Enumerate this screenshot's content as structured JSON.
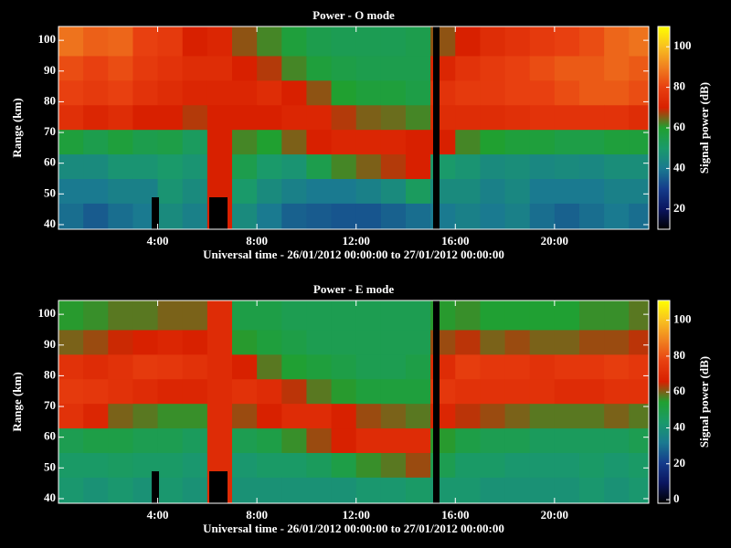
{
  "chart_data": [
    {
      "type": "heatmap",
      "title": "Power - O mode",
      "xlabel": "Universal time - 26/01/2012 00:00:00 to 27/01/2012 00:00:00",
      "ylabel": "Range (km)",
      "colorbar_label": "Signal power (dB)",
      "xlim": [
        0,
        23.8
      ],
      "ylim": [
        38.5,
        104.5
      ],
      "clim": [
        10,
        110
      ],
      "xticks": [
        {
          "value": 4,
          "label": "4:00"
        },
        {
          "value": 8,
          "label": "8:00"
        },
        {
          "value": 12,
          "label": "12:00"
        },
        {
          "value": 16,
          "label": "16:00"
        },
        {
          "value": 20,
          "label": "20:00"
        }
      ],
      "yticks": [
        40,
        50,
        60,
        70,
        80,
        90,
        100
      ],
      "cticks": [
        20,
        40,
        60,
        80,
        100
      ],
      "colormap": [
        "#000000",
        "#0a1560",
        "#153c8c",
        "#1a7a90",
        "#1a9a6a",
        "#20a030",
        "#d82000",
        "#e84010",
        "#f08020",
        "#f8c020",
        "#ffff00"
      ],
      "x_bins": [
        0,
        1,
        2,
        3,
        4,
        5,
        6,
        7,
        8,
        9,
        10,
        11,
        12,
        13,
        14,
        15,
        16,
        17,
        18,
        19,
        20,
        21,
        22,
        23,
        23.8
      ],
      "y_bins": [
        38.5,
        47,
        55,
        63,
        71,
        79,
        87,
        95,
        104.5
      ],
      "z": [
        [
          38,
          40,
          45,
          58,
          75,
          80,
          82,
          88
        ],
        [
          35,
          40,
          45,
          55,
          72,
          78,
          80,
          85
        ],
        [
          38,
          42,
          48,
          58,
          74,
          80,
          82,
          86
        ],
        [
          40,
          42,
          48,
          55,
          70,
          76,
          78,
          80
        ],
        [
          45,
          48,
          50,
          56,
          70,
          74,
          76,
          78
        ],
        [
          42,
          45,
          48,
          52,
          68,
          72,
          74,
          70
        ],
        [
          70,
          70,
          70,
          70,
          70,
          72,
          74,
          72
        ],
        [
          45,
          50,
          55,
          62,
          70,
          72,
          70,
          66
        ],
        [
          40,
          45,
          50,
          60,
          70,
          74,
          68,
          62
        ],
        [
          36,
          42,
          48,
          65,
          72,
          70,
          62,
          58
        ],
        [
          35,
          40,
          55,
          70,
          72,
          66,
          58,
          55
        ],
        [
          34,
          40,
          62,
          72,
          68,
          60,
          56,
          54
        ],
        [
          34,
          42,
          65,
          72,
          65,
          58,
          55,
          54
        ],
        [
          36,
          45,
          68,
          72,
          64,
          58,
          55,
          54
        ],
        [
          38,
          52,
          70,
          70,
          62,
          56,
          55,
          55
        ],
        [
          40,
          45,
          50,
          70,
          74,
          76,
          72,
          66
        ],
        [
          42,
          45,
          48,
          62,
          74,
          78,
          76,
          70
        ],
        [
          40,
          42,
          45,
          60,
          74,
          78,
          78,
          74
        ],
        [
          42,
          44,
          46,
          58,
          75,
          80,
          80,
          76
        ],
        [
          38,
          40,
          44,
          58,
          76,
          80,
          82,
          78
        ],
        [
          36,
          40,
          45,
          56,
          76,
          82,
          84,
          80
        ],
        [
          38,
          40,
          44,
          56,
          76,
          84,
          84,
          82
        ],
        [
          40,
          42,
          46,
          58,
          76,
          84,
          86,
          86
        ],
        [
          38,
          42,
          46,
          58,
          74,
          82,
          84,
          88
        ]
      ]
    },
    {
      "type": "heatmap",
      "title": "Power - E mode",
      "xlabel": "Universal time - 26/01/2012 00:00:00 to 27/01/2012 00:00:00",
      "ylabel": "Range (km)",
      "colorbar_label": "Signal power (dB)",
      "xlim": [
        0,
        23.8
      ],
      "ylim": [
        38.5,
        104.5
      ],
      "clim": [
        -2,
        111
      ],
      "xticks": [
        {
          "value": 4,
          "label": "4:00"
        },
        {
          "value": 8,
          "label": "8:00"
        },
        {
          "value": 12,
          "label": "12:00"
        },
        {
          "value": 16,
          "label": "16:00"
        },
        {
          "value": 20,
          "label": "20:00"
        }
      ],
      "yticks": [
        40,
        50,
        60,
        70,
        80,
        90,
        100
      ],
      "cticks": [
        0,
        20,
        40,
        60,
        80,
        100
      ],
      "colormap": [
        "#000000",
        "#0a1560",
        "#153c8c",
        "#1a7a90",
        "#1a9a6a",
        "#20a030",
        "#d82000",
        "#e84010",
        "#f08020",
        "#f8c020",
        "#ffff00"
      ],
      "x_bins": [
        0,
        1,
        2,
        3,
        4,
        5,
        6,
        7,
        8,
        9,
        10,
        11,
        12,
        13,
        14,
        15,
        16,
        17,
        18,
        19,
        20,
        21,
        22,
        23,
        23.8
      ],
      "y_bins": [
        38.5,
        47,
        55,
        63,
        71,
        79,
        87,
        95,
        104.5
      ],
      "z": [
        [
          42,
          44,
          48,
          72,
          75,
          72,
          60,
          55
        ],
        [
          40,
          44,
          50,
          68,
          74,
          70,
          62,
          56
        ],
        [
          42,
          45,
          50,
          60,
          72,
          72,
          65,
          58
        ],
        [
          40,
          44,
          48,
          58,
          70,
          75,
          66,
          58
        ],
        [
          42,
          44,
          48,
          56,
          68,
          74,
          68,
          60
        ],
        [
          40,
          42,
          46,
          56,
          68,
          72,
          66,
          60
        ],
        [
          70,
          70,
          70,
          70,
          70,
          70,
          70,
          70
        ],
        [
          40,
          42,
          48,
          62,
          72,
          66,
          55,
          50
        ],
        [
          40,
          44,
          50,
          66,
          70,
          58,
          52,
          50
        ],
        [
          40,
          44,
          56,
          70,
          64,
          54,
          50,
          48
        ],
        [
          40,
          46,
          62,
          70,
          58,
          52,
          48,
          48
        ],
        [
          40,
          50,
          66,
          66,
          55,
          50,
          48,
          48
        ],
        [
          42,
          56,
          70,
          62,
          52,
          48,
          48,
          48
        ],
        [
          42,
          58,
          70,
          60,
          52,
          48,
          48,
          48
        ],
        [
          44,
          62,
          70,
          58,
          52,
          50,
          48,
          48
        ],
        [
          42,
          48,
          55,
          68,
          74,
          70,
          62,
          55
        ],
        [
          42,
          44,
          50,
          64,
          72,
          76,
          64,
          56
        ],
        [
          40,
          44,
          48,
          62,
          72,
          74,
          60,
          54
        ],
        [
          40,
          42,
          48,
          60,
          72,
          74,
          62,
          54
        ],
        [
          40,
          42,
          46,
          58,
          72,
          72,
          60,
          54
        ],
        [
          40,
          42,
          46,
          58,
          70,
          74,
          60,
          54
        ],
        [
          42,
          44,
          46,
          58,
          70,
          74,
          62,
          56
        ],
        [
          40,
          42,
          46,
          60,
          72,
          76,
          62,
          56
        ],
        [
          42,
          44,
          48,
          58,
          72,
          74,
          64,
          58
        ]
      ]
    }
  ]
}
